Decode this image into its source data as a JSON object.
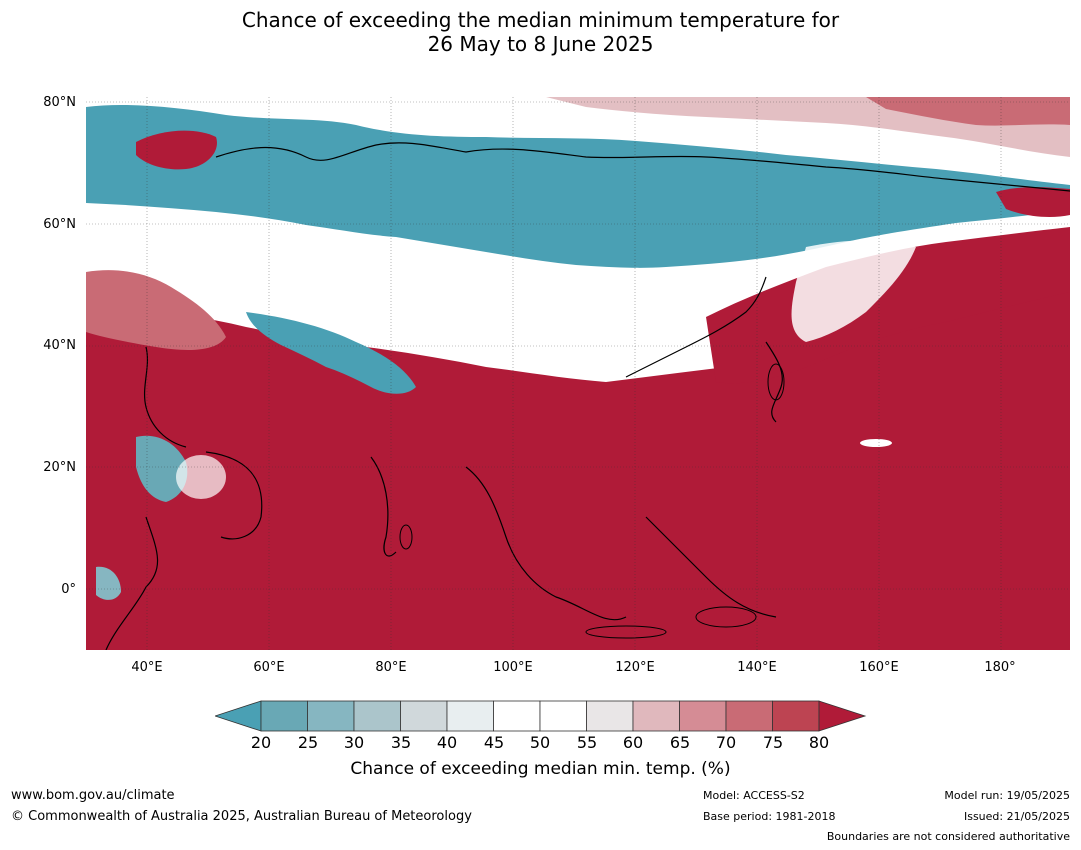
{
  "title": {
    "line1": "Chance of exceeding the median minimum temperature for",
    "line2": "26 May to 8 June 2025"
  },
  "map": {
    "lat_labels": [
      "80°N",
      "60°N",
      "40°N",
      "20°N",
      "0°"
    ],
    "lon_labels": [
      "40°E",
      "60°E",
      "80°E",
      "100°E",
      "120°E",
      "140°E",
      "160°E",
      "180°"
    ]
  },
  "legend": {
    "ticks": [
      "20",
      "25",
      "30",
      "35",
      "40",
      "45",
      "50",
      "55",
      "60",
      "65",
      "70",
      "75",
      "80"
    ],
    "colors": [
      "#4aa0b4",
      "#69a8b5",
      "#86b6c1",
      "#abc5cb",
      "#d0d8db",
      "#e8eef0",
      "#ffffff",
      "#ffffff",
      "#e9e6e7",
      "#e0b8bd",
      "#d58c95",
      "#c96b75",
      "#bd4452",
      "#b01b38"
    ],
    "label": "Chance of exceeding median min. temp. (%)"
  },
  "footer": {
    "url": "www.bom.gov.au/climate",
    "copyright": "© Commonwealth of Australia 2025, Australian Bureau of Meteorology",
    "model": "Model: ACCESS-S2",
    "base_period": "Base period: 1981-2018",
    "model_run": "Model run: 19/05/2025",
    "issued": "Issued: 21/05/2025",
    "disclaimer": "Boundaries are not considered authoritative"
  }
}
